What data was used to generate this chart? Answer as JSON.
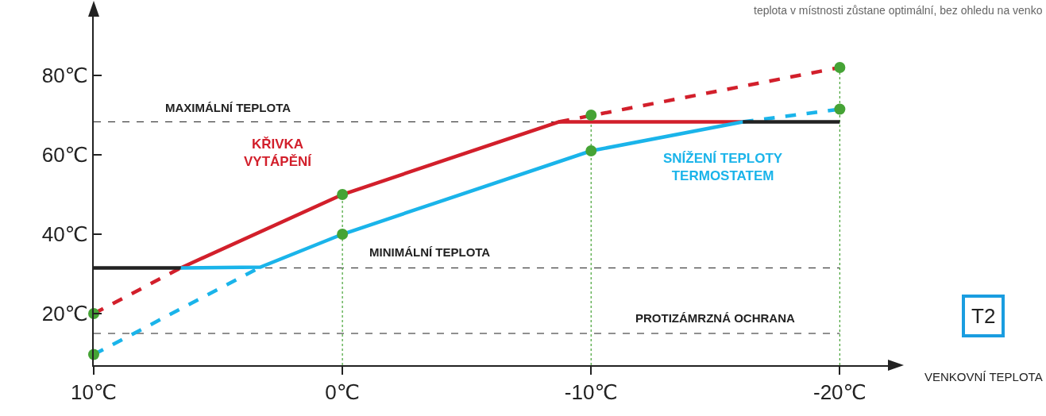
{
  "chart_data": {
    "type": "line",
    "xlabel": "VENKOVNÍ TEPLOTA",
    "annotations": [
      "teplota v místnosti zůstane optimální, bez ohledu na venko",
      "T2"
    ],
    "xlim": [
      10,
      -22
    ],
    "ylim": [
      7,
      96
    ],
    "xticks": [
      {
        "value": 10,
        "label": "10℃"
      },
      {
        "value": 0,
        "label": "0℃"
      },
      {
        "value": -10,
        "label": "-10℃"
      },
      {
        "value": -20,
        "label": "-20℃"
      }
    ],
    "yticks": [
      {
        "value": 20,
        "label": "20℃"
      },
      {
        "value": 40,
        "label": "40℃"
      },
      {
        "value": 60,
        "label": "60℃"
      },
      {
        "value": 80,
        "label": "80℃"
      }
    ],
    "grid": false,
    "legend": false,
    "series": [
      {
        "name": "KŘIVKA\nVYTÁPĚNÍ",
        "color": "#d21f2b",
        "line_style": "solid",
        "marker": "none",
        "x": [
          6.5,
          0,
          -8.7,
          -16.1
        ],
        "values": [
          31.5,
          50,
          68.3,
          68.3
        ]
      },
      {
        "color": "#d21f2b",
        "line_style": "dashed",
        "marker": "none",
        "x": [
          10,
          6.5
        ],
        "values": [
          20,
          31.5
        ]
      },
      {
        "name": "SNÍŽENÍ TEPLOTY\nTERMOSTATEM",
        "color": "#1ab4ea",
        "line_style": "solid",
        "marker": "none",
        "x": [
          6.5,
          3.3,
          0,
          -10,
          -16.1
        ],
        "values": [
          31.5,
          31.7,
          40,
          61,
          68.3
        ]
      },
      {
        "color": "#1ab4ea",
        "line_style": "dashed",
        "marker": "none",
        "x": [
          10,
          3.3
        ],
        "values": [
          9.7,
          31.7
        ]
      },
      {
        "color": "#222222",
        "line_style": "solid",
        "marker": "none",
        "x": [
          10,
          6.5
        ],
        "values": [
          31.5,
          31.5
        ]
      },
      {
        "color": "#d21f2b",
        "line_style": "dashed",
        "marker": "none",
        "x": [
          -8.7,
          -20
        ],
        "values": [
          68.3,
          82
        ]
      },
      {
        "color": "#1ab4ea",
        "line_style": "dashed",
        "marker": "none",
        "x": [
          -16.1,
          -20
        ],
        "values": [
          68.3,
          71.5
        ]
      },
      {
        "color": "#222222",
        "line_style": "solid",
        "marker": "none",
        "x": [
          -16.1,
          -20
        ],
        "values": [
          68.3,
          68.3
        ]
      },
      {
        "type": "scatter",
        "color": "#45a335",
        "marker": "circle",
        "x": [
          10,
          10,
          0,
          0,
          -10,
          -10,
          -20,
          -20
        ],
        "values": [
          20,
          9.7,
          50,
          40,
          70,
          61,
          82,
          71.5
        ]
      }
    ],
    "ref_lines": [
      {
        "axis": "y",
        "value": 68.3,
        "label": "MAXIMÁLNÍ TEPLOTA",
        "color": "#222222",
        "line_style": "dashed"
      },
      {
        "axis": "y",
        "value": 31.5,
        "label": "MINIMÁLNÍ TEPLOTA",
        "color": "#222222",
        "line_style": "dashed"
      },
      {
        "axis": "y",
        "value": 15,
        "label": "PROTIZÁMRZNÁ OCHRANA",
        "color": "#222222",
        "line_style": "dashed"
      },
      {
        "axis": "x",
        "value": 0,
        "color": "#45a335",
        "line_style": "dotted"
      },
      {
        "axis": "x",
        "value": -10,
        "color": "#45a335",
        "line_style": "dotted"
      },
      {
        "axis": "x",
        "value": -20,
        "color": "#45a335",
        "line_style": "dotted"
      }
    ]
  }
}
